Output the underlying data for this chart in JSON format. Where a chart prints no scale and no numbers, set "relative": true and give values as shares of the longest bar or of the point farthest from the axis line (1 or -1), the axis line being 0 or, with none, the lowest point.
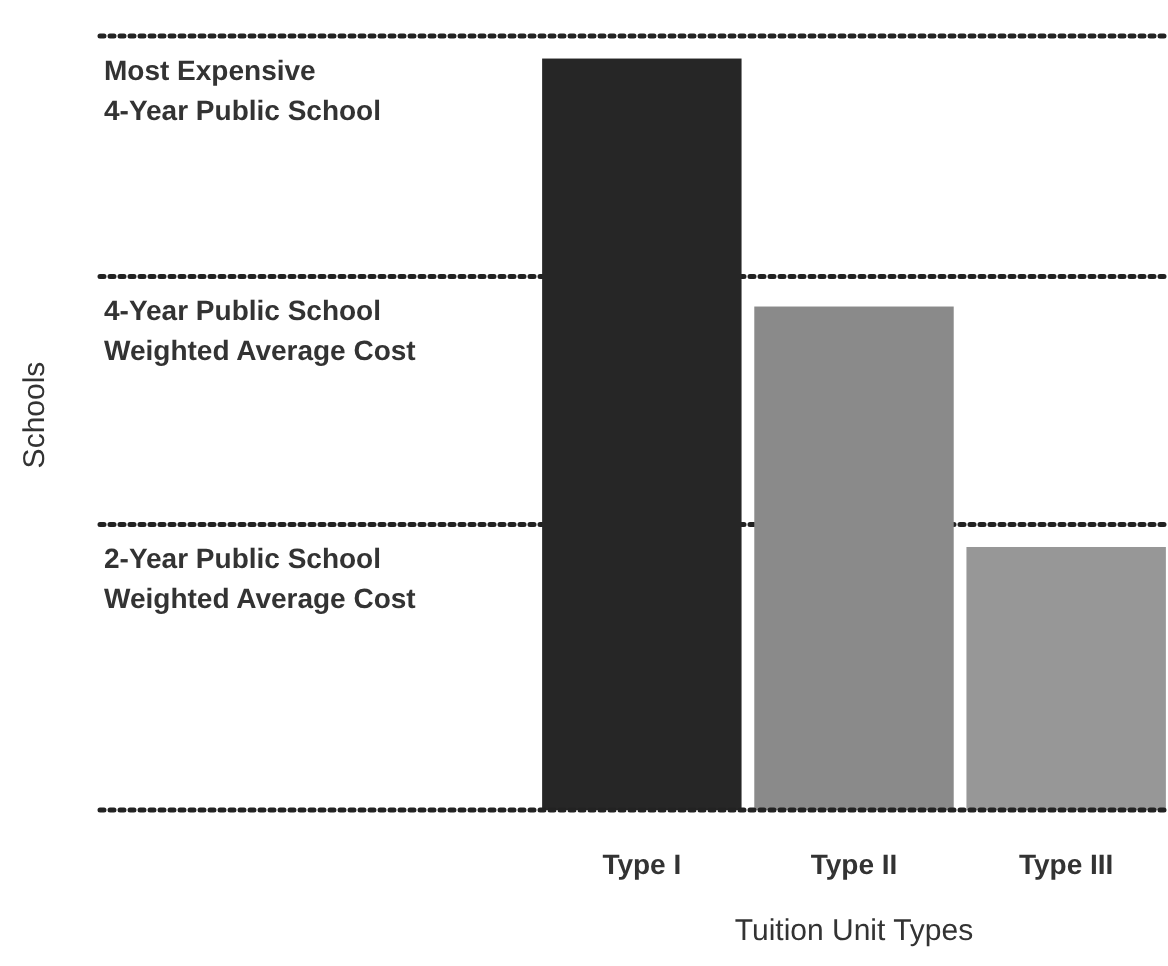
{
  "chart_data": {
    "type": "bar",
    "relative": true,
    "xlabel": "Tuition Unit Types",
    "annotations": [
      "Schools"
    ],
    "categories": [
      "Type I",
      "Type II",
      "Type III"
    ],
    "values": [
      1,
      0.67,
      0.35
    ],
    "colors": [
      "#262626",
      "#8a8a8a",
      "#979797"
    ],
    "ref_lines": [
      {
        "axis": "y",
        "value": 1.03,
        "label": "Most Expensive\n4-Year Public School",
        "color": "#222222",
        "line_style": "dotted"
      },
      {
        "axis": "y",
        "value": 0.71,
        "label": "4-Year Public School\nWeighted Average Cost",
        "color": "#222222",
        "line_style": "dotted"
      },
      {
        "axis": "y",
        "value": 0.38,
        "label": "2-Year Public School\nWeighted Average Cost",
        "color": "#222222",
        "line_style": "dotted"
      }
    ]
  }
}
